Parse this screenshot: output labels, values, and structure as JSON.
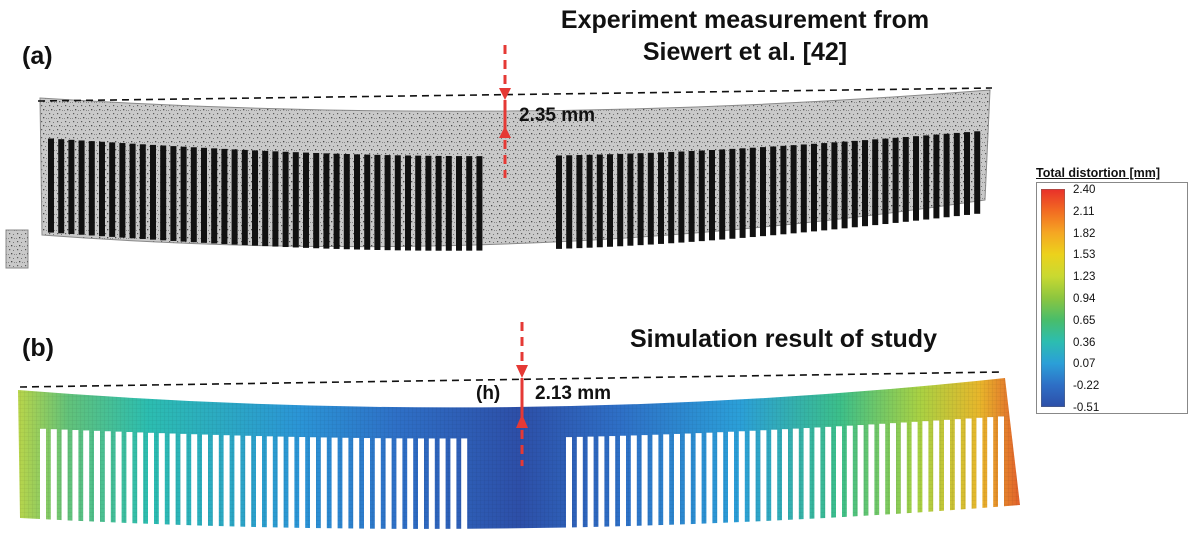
{
  "panel_a": {
    "label": "(a)",
    "title_line1": "Experiment measurement from",
    "title_line2": "Siewert et al. [42]",
    "measurement": "2.35 mm"
  },
  "panel_b": {
    "label": "(b)",
    "title": "Simulation result of study",
    "h_label": "(h)",
    "measurement": "2.13 mm"
  },
  "legend": {
    "title": "Total distortion [mm]",
    "ticks": [
      "2.40",
      "2.11",
      "1.82",
      "1.53",
      "1.23",
      "0.94",
      "0.65",
      "0.36",
      "0.07",
      "-0.22",
      "-0.51"
    ],
    "colors": [
      "#e8302a",
      "#f26b22",
      "#f5a623",
      "#ecd21c",
      "#c9d931",
      "#8cc63f",
      "#49bd6a",
      "#2cbdb0",
      "#2b9fd8",
      "#2e6fc6",
      "#2d4fa8"
    ]
  },
  "colors": {
    "indicator": "#e53935",
    "dashed_line": "#111111",
    "specimen_gray": "#b7b7b7"
  }
}
